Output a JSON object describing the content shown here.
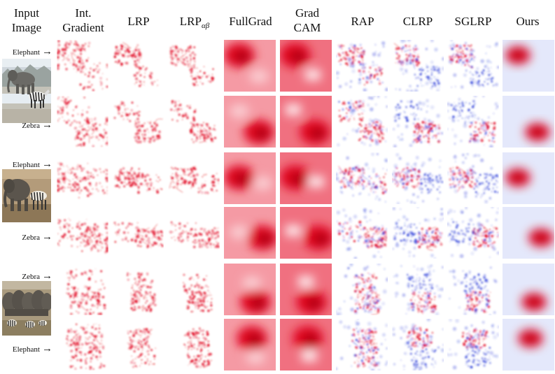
{
  "headers": {
    "input_line1": "Input",
    "input_line2": "Image",
    "int_line1": "Int.",
    "int_line2": "Gradient",
    "lrp": "LRP",
    "lrpab_main": "LRP",
    "lrpab_sub": "αβ",
    "fullgrad": "FullGrad",
    "gradcam_line1": "Grad",
    "gradcam_line2": "CAM",
    "rap": "RAP",
    "clrp": "CLRP",
    "sglrp": "SGLRP",
    "ours": "Ours"
  },
  "rows": [
    {
      "label": "Elephant",
      "arrow": "→"
    },
    {
      "label": "Zebra",
      "arrow": "→"
    },
    {
      "label": "Elephant",
      "arrow": "→"
    },
    {
      "label": "Zebra",
      "arrow": "→"
    },
    {
      "label": "Zebra",
      "arrow": "→"
    },
    {
      "label": "Elephant",
      "arrow": "→"
    }
  ],
  "colors": {
    "positive": "#e0001a",
    "negative": "#2a3cd8",
    "background": "#ffffff"
  }
}
